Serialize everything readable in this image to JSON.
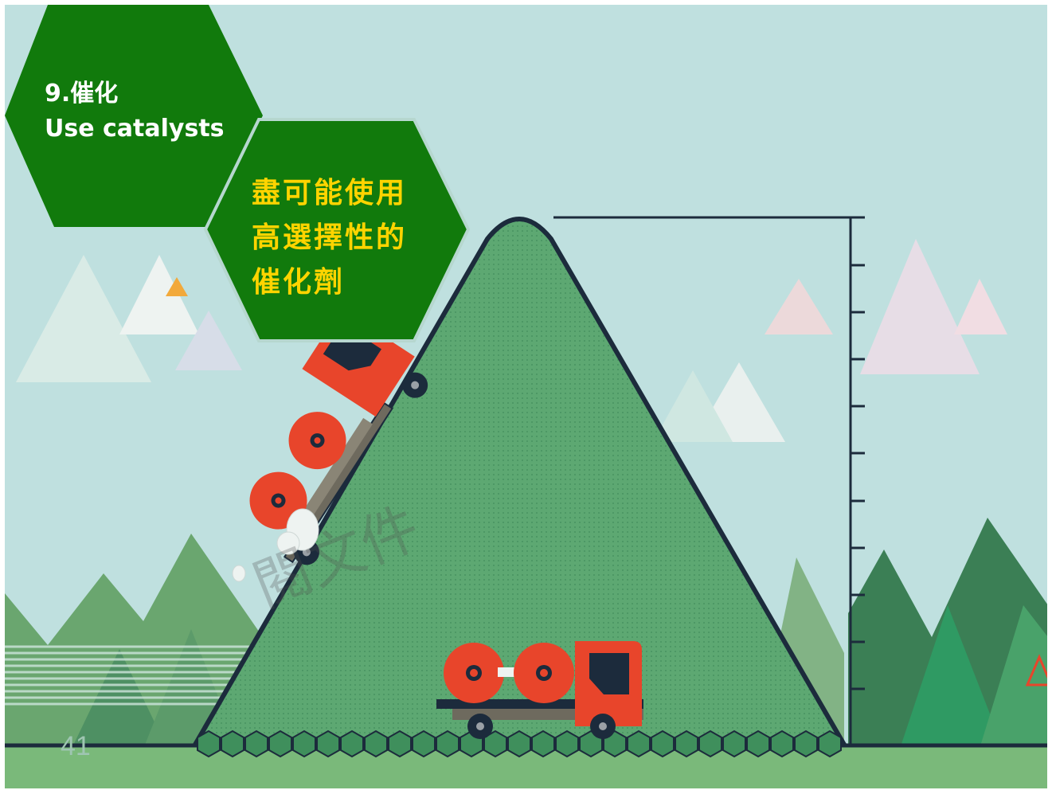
{
  "slide": {
    "hex_title": {
      "line1": "9.催化",
      "line2": "Use catalysts"
    },
    "hex_body": {
      "lines": [
        "盡可能使用",
        "高選擇性的",
        "催化劑"
      ]
    },
    "page_number": "41",
    "watermark": "閱文件"
  },
  "icons": {
    "truck_climbing": "red-truck-climbing-icon",
    "truck_waiting": "red-truck-waiting-icon",
    "mountain": "green-mountain-icon"
  },
  "colors": {
    "sky": "#bfe0df",
    "ground": "#7ab97a",
    "hex_green": "#117a0c",
    "hex_body_text": "#ffd400",
    "mountain": "#5da872",
    "truck_red": "#e8452b",
    "outline": "#1c2b3c"
  }
}
